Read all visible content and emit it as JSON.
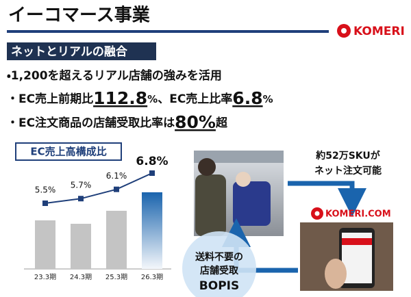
{
  "header": {
    "title": "イーコマース事業",
    "logo": "KOMERI"
  },
  "section": {
    "heading": "ネットとリアルの融合"
  },
  "bullets": [
    {
      "parts": [
        "・1,200を超えるリアル店舗の強みを活用"
      ]
    },
    {
      "parts": [
        "・EC売上前期比",
        "112.8",
        "%",
        "、EC売上比率",
        "6.8",
        "%"
      ]
    },
    {
      "parts": [
        "・EC注文商品の店舗受取比率は",
        "80%",
        "超"
      ]
    }
  ],
  "chart_data": {
    "type": "combo",
    "title": "EC売上高構成比",
    "categories": [
      "23.3期",
      "24.3期",
      "25.3期",
      "26.3期"
    ],
    "series": [
      {
        "values": [
          71,
          66,
          85,
          112
        ],
        "color": "#c4c4c4"
      },
      {
        "values": [
          5.5,
          5.7,
          6.1,
          6.8
        ],
        "value_labels": [
          "5.5%",
          "5.7%",
          "6.1%",
          "6.8%"
        ],
        "color": "#1f3f7a"
      }
    ]
  },
  "flow": {
    "sku_note": [
      "約52万SKUが",
      "ネット注文可能"
    ],
    "site_logo": "KOMERI.COM",
    "bopis": [
      "送料不要の",
      "店舗受取",
      "BOPIS"
    ]
  }
}
